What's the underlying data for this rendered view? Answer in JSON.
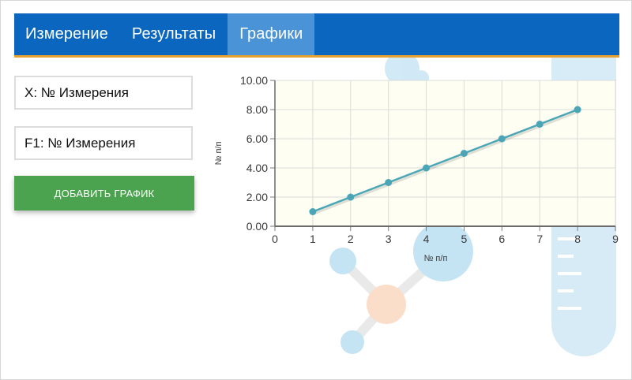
{
  "tabs": [
    {
      "label": "Измерение",
      "active": false
    },
    {
      "label": "Результаты",
      "active": false
    },
    {
      "label": "Графики",
      "active": true
    }
  ],
  "controls": {
    "x_select": "X: № Измерения",
    "f1_select": "F1: № Измерения",
    "add_button": "ДОБАВИТЬ ГРАФИК"
  },
  "colors": {
    "nav_bg": "#0a66bf",
    "nav_active": "#4a93d6",
    "nav_border": "#e7a12f",
    "button": "#4ca34f",
    "series": "#4aa6b6"
  },
  "chart_data": {
    "type": "line",
    "x": [
      1,
      2,
      3,
      4,
      5,
      6,
      7,
      8
    ],
    "series": [
      {
        "values": [
          1,
          2,
          3,
          4,
          5,
          6,
          7,
          8
        ]
      }
    ],
    "xlabel": "№ п/п",
    "ylabel": "№ п/п",
    "xlim": [
      0,
      9
    ],
    "ylim": [
      0,
      10
    ],
    "xticks": [
      "0",
      "1",
      "2",
      "3",
      "4",
      "5",
      "6",
      "7",
      "8",
      "9"
    ],
    "yticks": [
      "0.00",
      "2.00",
      "4.00",
      "6.00",
      "8.00",
      "10.00"
    ],
    "grid": true
  }
}
